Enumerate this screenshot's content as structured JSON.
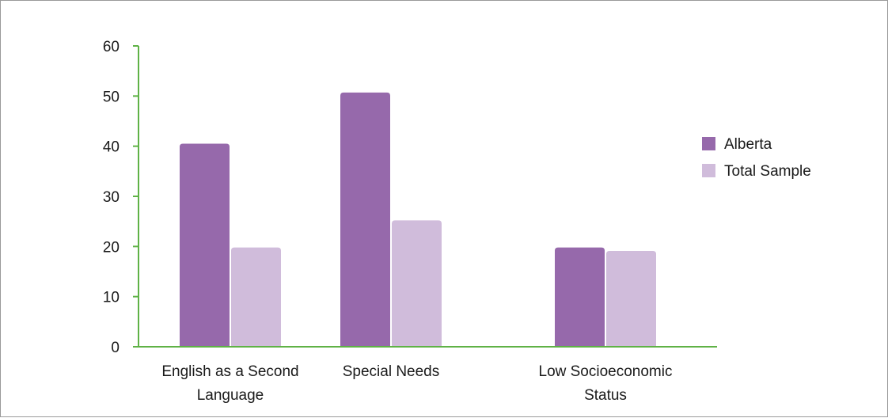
{
  "chart_data": {
    "type": "bar",
    "categories": [
      [
        "English as a Second",
        "Language"
      ],
      [
        "Special Needs"
      ],
      [
        "Low Socioeconomic",
        "Status"
      ]
    ],
    "series": [
      {
        "name": "Alberta",
        "values": [
          40.5,
          50.7,
          19.8
        ],
        "color": "#9669ab"
      },
      {
        "name": "Total Sample",
        "values": [
          19.8,
          25.2,
          19.1
        ],
        "color": "#d0bcdb"
      }
    ],
    "ylim": [
      0,
      60
    ],
    "yticks": [
      0,
      10,
      20,
      30,
      40,
      50,
      60
    ],
    "axis_color": "#5fb246",
    "legend_position": "right",
    "grid": false
  }
}
